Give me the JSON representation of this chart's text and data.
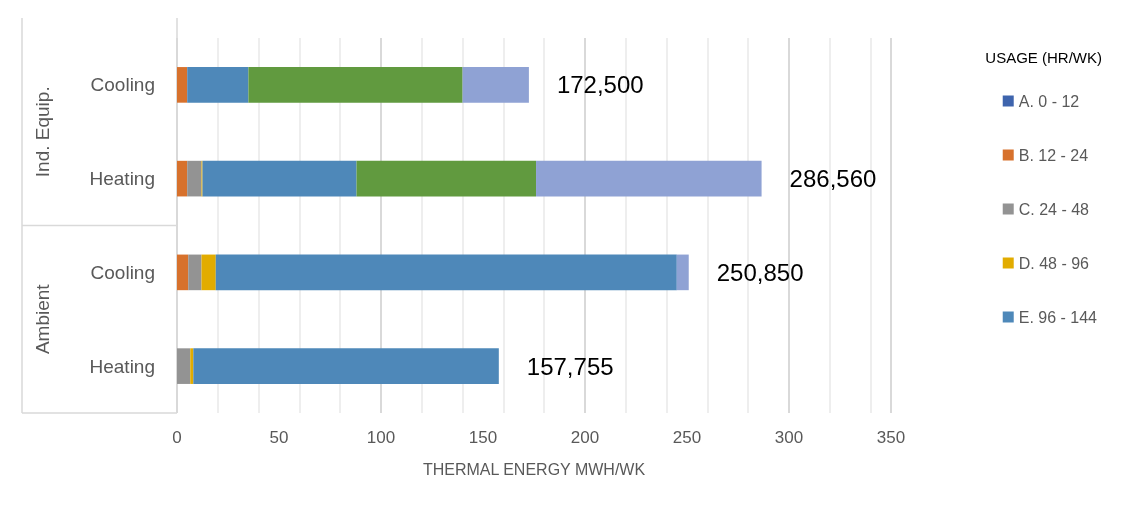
{
  "chart_data": {
    "type": "bar",
    "orientation": "horizontal",
    "stacked": true,
    "categories": [
      "Cooling",
      "Heating",
      "Cooling",
      "Heating"
    ],
    "annotations": [
      "Ind. Equip.",
      "Ambient"
    ],
    "xlabel": "THERMAL ENERGY MWH/WK",
    "legend_title": "USAGE (HR/WK)",
    "series": [
      {
        "name": "A. 0 - 12",
        "color": "#3e64ad",
        "values": [
          0,
          0,
          0,
          0
        ]
      },
      {
        "name": "B. 12 - 24",
        "color": "#d7712c",
        "values": [
          5,
          5,
          5.5,
          null
        ]
      },
      {
        "name": "C. 24 - 48",
        "color": "#939393",
        "values": [
          null,
          7,
          6.5,
          6.5
        ]
      },
      {
        "name": "D. 48 - 96",
        "color": "#e2ac00",
        "values": [
          null,
          0.5,
          7,
          1.5
        ]
      },
      {
        "name": "E. 96 - 144",
        "color": "#4e88b9",
        "values": [
          30,
          75.5,
          226,
          149.755
        ]
      },
      {
        "color": "#619a3f",
        "values": [
          105,
          88,
          null,
          null
        ]
      },
      {
        "color": "#8fa2d4",
        "values": [
          32.5,
          110.56,
          5.85,
          null
        ]
      }
    ],
    "totals": [
      "172,500",
      "286,560",
      "250,850",
      "157,755"
    ],
    "xlim": [
      0,
      350
    ],
    "xticks": [
      0,
      50,
      100,
      150,
      200,
      250,
      300,
      350
    ],
    "grid": "x",
    "legend": "right"
  }
}
